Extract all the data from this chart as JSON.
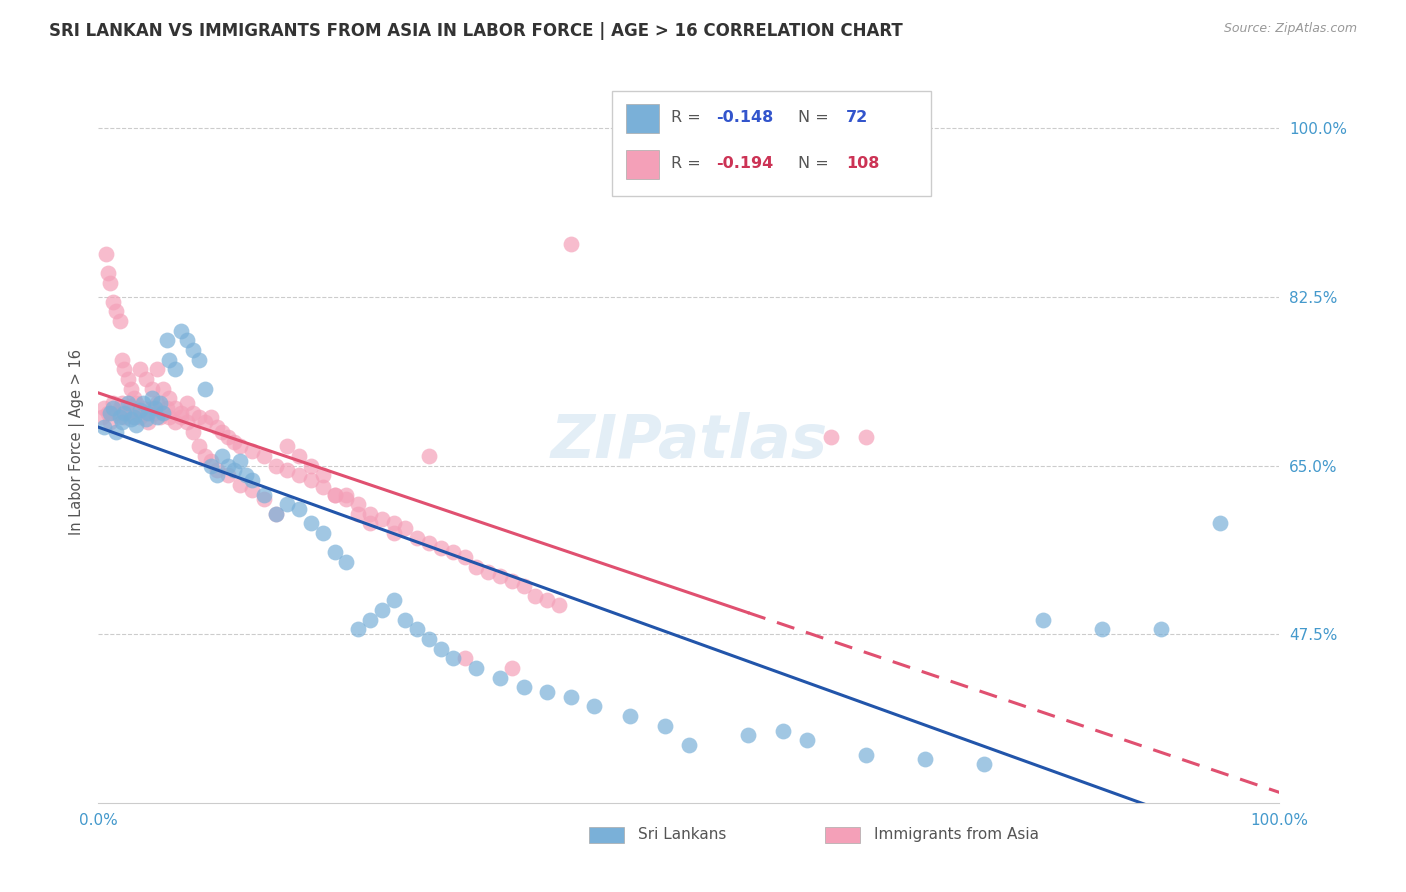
{
  "title": "SRI LANKAN VS IMMIGRANTS FROM ASIA IN LABOR FORCE | AGE > 16 CORRELATION CHART",
  "source": "Source: ZipAtlas.com",
  "ylabel": "In Labor Force | Age > 16",
  "watermark": "ZIPatlas",
  "sri_lankans": {
    "color": "#7ab0d8",
    "line_color": "#2255aa",
    "R": -0.148,
    "N": 72,
    "x": [
      0.5,
      1.0,
      1.2,
      1.5,
      1.8,
      2.0,
      2.2,
      2.5,
      2.8,
      3.0,
      3.2,
      3.5,
      3.8,
      4.0,
      4.2,
      4.5,
      4.8,
      5.0,
      5.2,
      5.5,
      5.8,
      6.0,
      6.5,
      7.0,
      7.5,
      8.0,
      8.5,
      9.0,
      9.5,
      10.0,
      10.5,
      11.0,
      11.5,
      12.0,
      12.5,
      13.0,
      14.0,
      15.0,
      16.0,
      17.0,
      18.0,
      19.0,
      20.0,
      21.0,
      22.0,
      23.0,
      24.0,
      25.0,
      26.0,
      27.0,
      28.0,
      29.0,
      30.0,
      32.0,
      34.0,
      36.0,
      38.0,
      40.0,
      42.0,
      45.0,
      48.0,
      50.0,
      55.0,
      58.0,
      60.0,
      65.0,
      70.0,
      75.0,
      80.0,
      85.0,
      90.0,
      95.0
    ],
    "y": [
      69.0,
      70.5,
      71.0,
      68.5,
      70.0,
      69.5,
      70.5,
      71.5,
      69.8,
      70.0,
      69.2,
      70.8,
      71.5,
      69.8,
      70.5,
      72.0,
      71.0,
      70.0,
      71.5,
      70.5,
      78.0,
      76.0,
      75.0,
      79.0,
      78.0,
      77.0,
      76.0,
      73.0,
      65.0,
      64.0,
      66.0,
      65.0,
      64.5,
      65.5,
      64.0,
      63.5,
      62.0,
      60.0,
      61.0,
      60.5,
      59.0,
      58.0,
      56.0,
      55.0,
      48.0,
      49.0,
      50.0,
      51.0,
      49.0,
      48.0,
      47.0,
      46.0,
      45.0,
      44.0,
      43.0,
      42.0,
      41.5,
      41.0,
      40.0,
      39.0,
      38.0,
      36.0,
      37.0,
      37.5,
      36.5,
      35.0,
      34.5,
      34.0,
      49.0,
      48.0,
      48.0,
      59.0
    ]
  },
  "asia_immigrants": {
    "color": "#f4a0b8",
    "line_color": "#e05070",
    "R": -0.194,
    "N": 108,
    "x": [
      0.3,
      0.5,
      0.8,
      1.0,
      1.2,
      1.5,
      1.8,
      2.0,
      2.2,
      2.5,
      2.8,
      3.0,
      3.2,
      3.5,
      3.8,
      4.0,
      4.2,
      4.5,
      4.8,
      5.0,
      5.2,
      5.5,
      5.8,
      6.0,
      6.5,
      7.0,
      7.5,
      8.0,
      8.5,
      9.0,
      9.5,
      10.0,
      10.5,
      11.0,
      11.5,
      12.0,
      13.0,
      14.0,
      15.0,
      16.0,
      17.0,
      18.0,
      19.0,
      20.0,
      21.0,
      22.0,
      23.0,
      24.0,
      25.0,
      26.0,
      27.0,
      28.0,
      29.0,
      30.0,
      31.0,
      32.0,
      33.0,
      34.0,
      35.0,
      36.0,
      37.0,
      38.0,
      39.0,
      40.0,
      0.6,
      0.8,
      1.0,
      1.2,
      1.5,
      1.8,
      2.0,
      2.2,
      2.5,
      2.8,
      3.0,
      3.5,
      4.0,
      4.5,
      5.0,
      5.5,
      6.0,
      6.5,
      7.0,
      7.5,
      8.0,
      8.5,
      9.0,
      9.5,
      10.0,
      11.0,
      12.0,
      13.0,
      14.0,
      15.0,
      16.0,
      17.0,
      18.0,
      19.0,
      20.0,
      21.0,
      22.0,
      23.0,
      25.0,
      28.0,
      31.0,
      35.0,
      62.0,
      65.0
    ],
    "y": [
      70.0,
      71.0,
      70.5,
      69.5,
      71.5,
      70.5,
      71.0,
      71.5,
      70.0,
      70.5,
      71.2,
      70.8,
      71.5,
      70.0,
      71.0,
      70.5,
      69.5,
      71.0,
      70.5,
      71.5,
      70.0,
      70.5,
      71.0,
      70.0,
      69.5,
      70.5,
      71.5,
      70.5,
      70.0,
      69.5,
      70.0,
      69.0,
      68.5,
      68.0,
      67.5,
      67.0,
      66.5,
      66.0,
      65.0,
      64.5,
      64.0,
      63.5,
      62.8,
      62.0,
      61.5,
      61.0,
      60.0,
      59.5,
      59.0,
      58.5,
      57.5,
      57.0,
      56.5,
      56.0,
      55.5,
      54.5,
      54.0,
      53.5,
      53.0,
      52.5,
      51.5,
      51.0,
      50.5,
      88.0,
      87.0,
      85.0,
      84.0,
      82.0,
      81.0,
      80.0,
      76.0,
      75.0,
      74.0,
      73.0,
      72.0,
      75.0,
      74.0,
      73.0,
      75.0,
      73.0,
      72.0,
      71.0,
      70.0,
      69.5,
      68.5,
      67.0,
      66.0,
      65.5,
      64.5,
      64.0,
      63.0,
      62.5,
      61.5,
      60.0,
      67.0,
      66.0,
      65.0,
      64.0,
      62.0,
      62.0,
      60.0,
      59.0,
      58.0,
      66.0,
      45.0,
      44.0,
      68.0,
      68.0
    ]
  },
  "xlim": [
    0.0,
    100.0
  ],
  "ylim": [
    30.0,
    105.0
  ],
  "yticks": [
    47.5,
    65.0,
    82.5,
    100.0
  ],
  "ytick_labels": [
    "47.5%",
    "65.0%",
    "82.5%",
    "100.0%"
  ],
  "background_color": "#ffffff",
  "grid_color": "#cccccc",
  "axis_color": "#4499cc",
  "title_fontsize": 13,
  "label_fontsize": 10
}
